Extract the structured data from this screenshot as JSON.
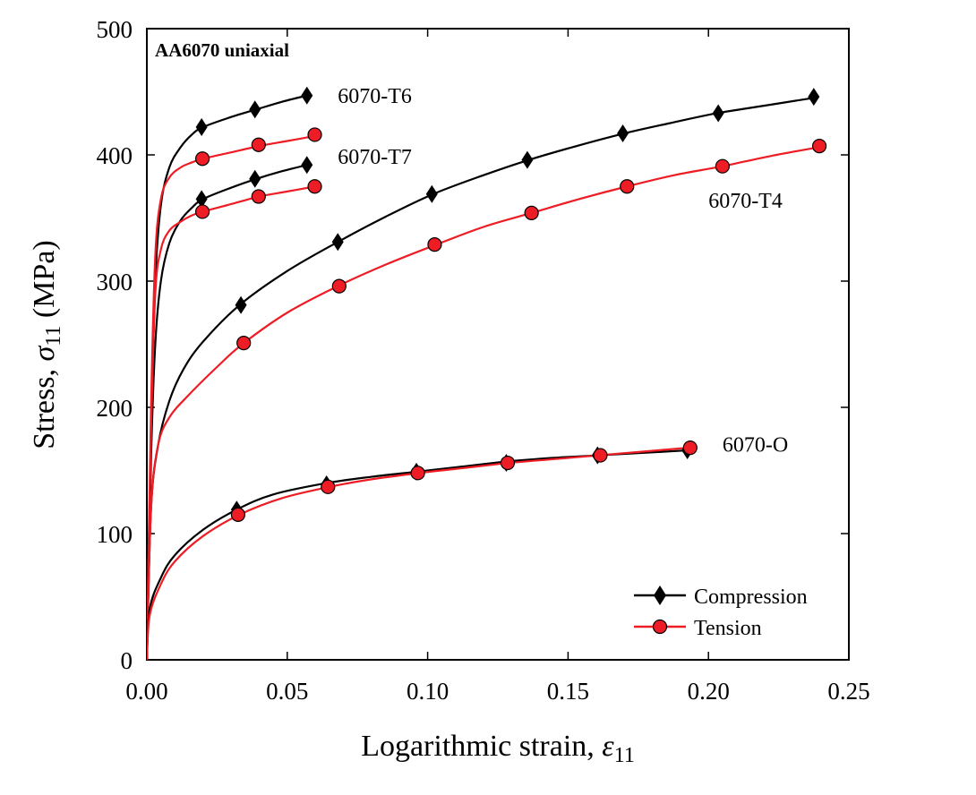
{
  "chart_data": {
    "type": "line",
    "annotation": "AA6070 uniaxial",
    "xlabel": {
      "main": "Logarithmic strain, ",
      "symbol": "ε",
      "sub": "11"
    },
    "ylabel": {
      "main": "Stress, ",
      "symbol": "σ",
      "sub": "11",
      "unit": " (MPa)"
    },
    "xlim": [
      0,
      0.25
    ],
    "ylim": [
      0,
      500
    ],
    "xticks": [
      {
        "value": 0,
        "label": "0.00"
      },
      {
        "value": 0.05,
        "label": "0.05"
      },
      {
        "value": 0.1,
        "label": "0.10"
      },
      {
        "value": 0.15,
        "label": "0.15"
      },
      {
        "value": 0.2,
        "label": "0.20"
      },
      {
        "value": 0.25,
        "label": "0.25"
      }
    ],
    "yticks": [
      {
        "value": 0,
        "label": "0"
      },
      {
        "value": 100,
        "label": "100"
      },
      {
        "value": 200,
        "label": "200"
      },
      {
        "value": 300,
        "label": "300"
      },
      {
        "value": 400,
        "label": "400"
      },
      {
        "value": 500,
        "label": "500"
      }
    ],
    "legend": {
      "position": "bottom-right",
      "entries": [
        {
          "label": "Compression",
          "color": "#000000",
          "marker": "diamond"
        },
        {
          "label": "Tension",
          "color": "#ee1c24",
          "marker": "circle"
        }
      ]
    },
    "series": [
      {
        "name": "6070-T6 Compression",
        "kind": "compression",
        "color": "#000000",
        "marker": "diamond",
        "curve": [
          [
            0,
            0
          ],
          [
            0.0015,
            180
          ],
          [
            0.003,
            300
          ],
          [
            0.005,
            360
          ],
          [
            0.008,
            390
          ],
          [
            0.012,
            406
          ],
          [
            0.016,
            416
          ],
          [
            0.02,
            422
          ],
          [
            0.03,
            430
          ],
          [
            0.039,
            436
          ],
          [
            0.048,
            442
          ],
          [
            0.057,
            447
          ]
        ],
        "markers": [
          [
            0.0195,
            422
          ],
          [
            0.0385,
            436
          ],
          [
            0.057,
            447
          ]
        ]
      },
      {
        "name": "6070-T6 Tension",
        "kind": "tension",
        "color": "#ee1c24",
        "marker": "circle",
        "curve": [
          [
            0,
            0
          ],
          [
            0.0015,
            200
          ],
          [
            0.003,
            320
          ],
          [
            0.005,
            365
          ],
          [
            0.008,
            382
          ],
          [
            0.012,
            390
          ],
          [
            0.016,
            394
          ],
          [
            0.02,
            397
          ],
          [
            0.03,
            402
          ],
          [
            0.04,
            407
          ],
          [
            0.05,
            411
          ],
          [
            0.06,
            415
          ]
        ],
        "markers": [
          [
            0.0198,
            397
          ],
          [
            0.0398,
            408
          ],
          [
            0.0598,
            416
          ]
        ]
      },
      {
        "name": "6070-T7 Compression",
        "kind": "compression",
        "color": "#000000",
        "marker": "diamond",
        "curve": [
          [
            0,
            0
          ],
          [
            0.0015,
            160
          ],
          [
            0.003,
            250
          ],
          [
            0.005,
            300
          ],
          [
            0.008,
            330
          ],
          [
            0.012,
            348
          ],
          [
            0.016,
            358
          ],
          [
            0.02,
            365
          ],
          [
            0.03,
            374
          ],
          [
            0.039,
            381
          ],
          [
            0.048,
            387
          ],
          [
            0.057,
            392
          ]
        ],
        "markers": [
          [
            0.0195,
            365
          ],
          [
            0.0385,
            381
          ],
          [
            0.057,
            392
          ]
        ]
      },
      {
        "name": "6070-T7 Tension",
        "kind": "tension",
        "color": "#ee1c24",
        "marker": "circle",
        "curve": [
          [
            0,
            0
          ],
          [
            0.0015,
            180
          ],
          [
            0.003,
            290
          ],
          [
            0.005,
            325
          ],
          [
            0.008,
            340
          ],
          [
            0.012,
            347
          ],
          [
            0.016,
            352
          ],
          [
            0.02,
            355
          ],
          [
            0.03,
            361
          ],
          [
            0.04,
            367
          ],
          [
            0.05,
            371
          ],
          [
            0.06,
            375
          ]
        ],
        "markers": [
          [
            0.0198,
            355
          ],
          [
            0.0398,
            367
          ],
          [
            0.0598,
            375
          ]
        ]
      },
      {
        "name": "6070-T4 Compression",
        "kind": "compression",
        "color": "#000000",
        "marker": "diamond",
        "curve": [
          [
            0,
            0
          ],
          [
            0.0015,
            120
          ],
          [
            0.004,
            170
          ],
          [
            0.008,
            205
          ],
          [
            0.013,
            230
          ],
          [
            0.02,
            252
          ],
          [
            0.033,
            281
          ],
          [
            0.05,
            308
          ],
          [
            0.068,
            331
          ],
          [
            0.085,
            351
          ],
          [
            0.102,
            369
          ],
          [
            0.12,
            384
          ],
          [
            0.136,
            396
          ],
          [
            0.153,
            407
          ],
          [
            0.17,
            417
          ],
          [
            0.186,
            425
          ],
          [
            0.203,
            433
          ],
          [
            0.22,
            439
          ],
          [
            0.237,
            445
          ]
        ],
        "markers": [
          [
            0.0335,
            281
          ],
          [
            0.068,
            331
          ],
          [
            0.1015,
            369
          ],
          [
            0.1355,
            396
          ],
          [
            0.1695,
            417
          ],
          [
            0.2035,
            433
          ],
          [
            0.2375,
            446
          ]
        ]
      },
      {
        "name": "6070-T4 Tension",
        "kind": "tension",
        "color": "#ee1c24",
        "marker": "circle",
        "curve": [
          [
            0,
            0
          ],
          [
            0.0015,
            120
          ],
          [
            0.004,
            170
          ],
          [
            0.008,
            192
          ],
          [
            0.015,
            210
          ],
          [
            0.025,
            232
          ],
          [
            0.034,
            250
          ],
          [
            0.05,
            275
          ],
          [
            0.068,
            296
          ],
          [
            0.085,
            313
          ],
          [
            0.102,
            328
          ],
          [
            0.12,
            343
          ],
          [
            0.137,
            354
          ],
          [
            0.154,
            365
          ],
          [
            0.171,
            375
          ],
          [
            0.188,
            384
          ],
          [
            0.205,
            391
          ],
          [
            0.222,
            399
          ],
          [
            0.239,
            406
          ]
        ],
        "markers": [
          [
            0.0345,
            251
          ],
          [
            0.0685,
            296
          ],
          [
            0.1025,
            329
          ],
          [
            0.137,
            354
          ],
          [
            0.171,
            375
          ],
          [
            0.205,
            391
          ],
          [
            0.2395,
            407
          ]
        ]
      },
      {
        "name": "6070-O Compression",
        "kind": "compression",
        "color": "#000000",
        "marker": "diamond",
        "curve": [
          [
            0,
            0
          ],
          [
            0.001,
            40
          ],
          [
            0.005,
            65
          ],
          [
            0.01,
            83
          ],
          [
            0.02,
            103
          ],
          [
            0.032,
            119
          ],
          [
            0.045,
            131
          ],
          [
            0.064,
            140
          ],
          [
            0.08,
            145
          ],
          [
            0.096,
            149
          ],
          [
            0.112,
            153
          ],
          [
            0.128,
            157
          ],
          [
            0.145,
            160
          ],
          [
            0.161,
            162
          ],
          [
            0.177,
            164
          ],
          [
            0.193,
            166
          ]
        ],
        "markers": [
          [
            0.032,
            119
          ],
          [
            0.064,
            139
          ],
          [
            0.096,
            149
          ],
          [
            0.128,
            156
          ],
          [
            0.1605,
            162
          ],
          [
            0.1925,
            166
          ]
        ]
      },
      {
        "name": "6070-O Tension",
        "kind": "tension",
        "color": "#ee1c24",
        "marker": "circle",
        "curve": [
          [
            0,
            0
          ],
          [
            0.001,
            35
          ],
          [
            0.005,
            60
          ],
          [
            0.01,
            78
          ],
          [
            0.02,
            98
          ],
          [
            0.033,
            115
          ],
          [
            0.048,
            128
          ],
          [
            0.065,
            137
          ],
          [
            0.08,
            143
          ],
          [
            0.097,
            148
          ],
          [
            0.113,
            152
          ],
          [
            0.129,
            156
          ],
          [
            0.145,
            159
          ],
          [
            0.161,
            162
          ],
          [
            0.177,
            165
          ],
          [
            0.193,
            168
          ]
        ],
        "markers": [
          [
            0.0325,
            115
          ],
          [
            0.0645,
            137
          ],
          [
            0.0965,
            148
          ],
          [
            0.1285,
            156
          ],
          [
            0.1615,
            162
          ],
          [
            0.1935,
            168
          ]
        ]
      }
    ],
    "curve_labels": [
      {
        "text": "6070-T6",
        "x": 0.068,
        "y": 441
      },
      {
        "text": "6070-T7",
        "x": 0.068,
        "y": 393
      },
      {
        "text": "6070-T4",
        "x": 0.2,
        "y": 358
      },
      {
        "text": "6070-O",
        "x": 0.205,
        "y": 165
      }
    ]
  }
}
